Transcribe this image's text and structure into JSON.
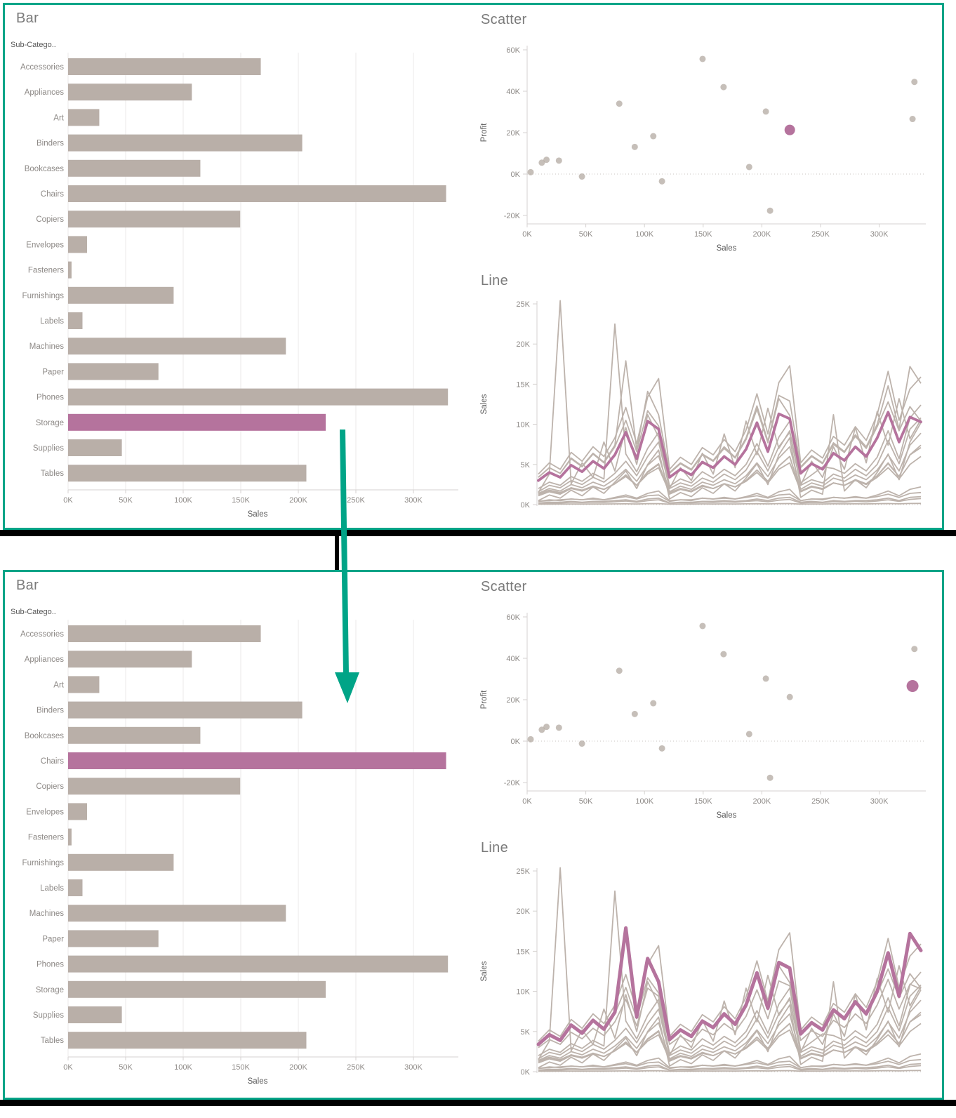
{
  "panels": [
    {
      "position": "top",
      "label": "before-selection",
      "highlight": "Storage"
    },
    {
      "position": "bottom",
      "label": "after-selection",
      "highlight": "Chairs"
    }
  ],
  "colors": {
    "panel_border": "#00a487",
    "arrow": "#00a487",
    "bar_default": "#b9afa8",
    "highlight": "#b5739d",
    "scatter_point": "#b3a9a2",
    "line_default": "#bdb3ac",
    "title_text": "#7a7a7a",
    "tick_text": "#8e8a87",
    "axis_text": "#575757",
    "grid": "#ebe9e8",
    "axis_line": "#d5d2d0",
    "zero_line": "#c8c4c1",
    "window_shadow": "#000000"
  },
  "chart_data": [
    {
      "type": "bar",
      "title": "Bar",
      "orientation": "horizontal",
      "col_header": "Sub-Catego..",
      "xlabel": "Sales",
      "categories": [
        "Accessories",
        "Appliances",
        "Art",
        "Binders",
        "Bookcases",
        "Chairs",
        "Copiers",
        "Envelopes",
        "Fasteners",
        "Furnishings",
        "Labels",
        "Machines",
        "Paper",
        "Phones",
        "Storage",
        "Supplies",
        "Tables"
      ],
      "values_k": [
        167.4,
        107.5,
        27.1,
        203.4,
        114.9,
        328.4,
        149.5,
        16.5,
        3.0,
        91.7,
        12.5,
        189.2,
        78.5,
        330.0,
        223.8,
        46.7,
        207.0
      ],
      "xticks": {
        "values_k": [
          0,
          50,
          100,
          150,
          200,
          250,
          300
        ],
        "labels": [
          "0K",
          "50K",
          "100K",
          "150K",
          "200K",
          "250K",
          "300K"
        ]
      },
      "xlim_k": [
        0,
        340
      ],
      "highlight_by_panel": [
        "Storage",
        "Chairs"
      ]
    },
    {
      "type": "scatter",
      "title": "Scatter",
      "xlabel": "Sales",
      "ylabel": "Profit",
      "categories": [
        "Accessories",
        "Appliances",
        "Art",
        "Binders",
        "Bookcases",
        "Chairs",
        "Copiers",
        "Envelopes",
        "Fasteners",
        "Furnishings",
        "Labels",
        "Machines",
        "Paper",
        "Phones",
        "Storage",
        "Supplies",
        "Tables"
      ],
      "x_sales_k": [
        167.4,
        107.5,
        27.1,
        203.4,
        114.9,
        328.4,
        149.5,
        16.5,
        3.0,
        91.7,
        12.5,
        189.2,
        78.5,
        330.0,
        223.8,
        46.7,
        207.0
      ],
      "y_profit_k": [
        42.0,
        18.3,
        6.5,
        30.2,
        -3.5,
        26.6,
        55.6,
        6.9,
        0.9,
        13.1,
        5.5,
        3.4,
        34.0,
        44.5,
        21.3,
        -1.2,
        -17.7
      ],
      "xticks": {
        "values_k": [
          0,
          50,
          100,
          150,
          200,
          250,
          300
        ],
        "labels": [
          "0K",
          "50K",
          "100K",
          "150K",
          "200K",
          "250K",
          "300K"
        ]
      },
      "yticks": {
        "values_k": [
          60,
          40,
          20,
          0,
          -20
        ],
        "labels": [
          "60K",
          "40K",
          "20K",
          "0K",
          "-20K"
        ]
      },
      "xlim_k": [
        0,
        345
      ],
      "ylim_k": [
        -25,
        63
      ],
      "zero_line": true,
      "highlight_by_panel": [
        "Storage",
        "Chairs"
      ]
    },
    {
      "type": "line",
      "title": "Line",
      "ylabel": "Sales",
      "x_unit": "month",
      "yticks": {
        "values_k": [
          0,
          5,
          10,
          15,
          20,
          25
        ],
        "labels": [
          "0K",
          "5K",
          "10K",
          "15K",
          "20K",
          "25K"
        ]
      },
      "ylim_k": [
        0,
        25.5
      ],
      "zero_line": true,
      "highlight_by_panel": [
        "Storage",
        "Chairs"
      ],
      "series": [
        {
          "name": "Accessories",
          "values_k": [
            1.6,
            2.4,
            2.1,
            3.0,
            2.5,
            3.4,
            2.8,
            3.9,
            5.4,
            3.6,
            6.0,
            7.8,
            2.0,
            2.7,
            2.3,
            3.3,
            2.8,
            3.8,
            3.1,
            4.3,
            6.6,
            4.2,
            7.2,
            9.0,
            2.4,
            3.1,
            2.7,
            3.8,
            3.3,
            4.4,
            3.6,
            5.0,
            8.0,
            5.1,
            9.4,
            10.8
          ]
        },
        {
          "name": "Appliances",
          "values_k": [
            1.1,
            1.6,
            1.3,
            2.0,
            1.7,
            2.2,
            1.9,
            2.6,
            3.6,
            2.4,
            4.0,
            5.0,
            1.3,
            1.9,
            1.6,
            2.3,
            2.0,
            2.6,
            2.2,
            3.0,
            4.3,
            2.9,
            4.8,
            6.0,
            1.6,
            2.2,
            1.9,
            2.7,
            2.4,
            3.1,
            2.6,
            3.6,
            5.1,
            3.5,
            6.2,
            7.4
          ]
        },
        {
          "name": "Art",
          "values_k": [
            0.4,
            0.5,
            0.6,
            0.7,
            0.6,
            0.7,
            0.6,
            0.8,
            1.0,
            0.7,
            1.1,
            1.2,
            0.4,
            0.6,
            0.6,
            0.8,
            0.7,
            0.8,
            0.7,
            0.9,
            1.1,
            0.8,
            1.2,
            1.3,
            0.5,
            0.7,
            0.7,
            0.9,
            0.8,
            0.9,
            0.8,
            1.0,
            1.3,
            0.9,
            1.4,
            1.5
          ]
        },
        {
          "name": "Binders",
          "values_k": [
            2.0,
            2.8,
            2.4,
            3.5,
            2.9,
            3.9,
            3.2,
            22.5,
            6.3,
            4.1,
            7.0,
            9.0,
            2.3,
            3.2,
            2.7,
            4.1,
            3.3,
            4.4,
            3.6,
            5.0,
            7.6,
            4.8,
            8.4,
            10.4,
            2.7,
            3.7,
            4.7,
            4.5,
            3.9,
            5.1,
            4.2,
            5.9,
            9.2,
            5.7,
            10.8,
            12.4
          ]
        },
        {
          "name": "Bookcases",
          "values_k": [
            1.4,
            2.0,
            1.7,
            2.5,
            2.1,
            2.8,
            2.3,
            3.2,
            4.4,
            2.9,
            4.9,
            6.1,
            1.6,
            2.3,
            1.9,
            2.8,
            2.4,
            3.1,
            2.6,
            3.6,
            5.2,
            3.5,
            5.8,
            7.2,
            1.9,
            2.7,
            2.3,
            3.3,
            2.9,
            3.7,
            3.1,
            4.3,
            6.2,
            4.2,
            7.4,
            8.9
          ]
        },
        {
          "name": "Chairs",
          "values_k": [
            3.4,
            4.6,
            3.9,
            5.8,
            4.8,
            6.4,
            5.3,
            7.4,
            17.9,
            6.8,
            14.1,
            11.2,
            4.0,
            5.2,
            4.4,
            6.3,
            5.5,
            7.2,
            5.9,
            8.3,
            12.3,
            7.9,
            13.6,
            12.9,
            4.7,
            6.1,
            5.2,
            7.7,
            6.6,
            8.7,
            7.2,
            10.0,
            14.8,
            9.4,
            17.2,
            15.1
          ]
        },
        {
          "name": "Copiers",
          "values_k": [
            0.5,
            1.2,
            0.8,
            1.8,
            1.1,
            2.2,
            1.4,
            2.8,
            4.2,
            2.0,
            5.0,
            6.8,
            0.7,
            1.5,
            1.0,
            2.1,
            1.4,
            2.6,
            1.7,
            3.3,
            5.1,
            2.5,
            6.2,
            8.3,
            0.9,
            1.8,
            1.3,
            11.2,
            1.7,
            3.1,
            2.1,
            4.0,
            6.3,
            3.1,
            7.8,
            10.2
          ]
        },
        {
          "name": "Envelopes",
          "values_k": [
            0.2,
            0.3,
            0.3,
            0.4,
            0.3,
            0.4,
            0.4,
            0.5,
            0.6,
            0.4,
            0.7,
            0.8,
            0.2,
            0.3,
            0.3,
            0.4,
            0.4,
            0.5,
            0.4,
            0.5,
            0.7,
            0.5,
            0.8,
            0.9,
            0.3,
            0.4,
            0.3,
            0.5,
            0.4,
            0.5,
            0.5,
            0.6,
            0.8,
            0.5,
            0.9,
            1.0
          ]
        },
        {
          "name": "Fasteners",
          "values_k": [
            0.05,
            0.06,
            0.07,
            0.08,
            0.07,
            0.08,
            0.08,
            0.09,
            0.1,
            0.08,
            0.11,
            0.12,
            0.05,
            0.07,
            0.07,
            0.09,
            0.08,
            0.09,
            0.08,
            0.1,
            0.11,
            0.09,
            0.12,
            0.13,
            0.06,
            0.08,
            0.08,
            0.1,
            0.09,
            0.1,
            0.09,
            0.11,
            0.13,
            0.1,
            0.14,
            0.15
          ]
        },
        {
          "name": "Furnishings",
          "values_k": [
            1.2,
            1.7,
            1.4,
            2.1,
            1.7,
            2.3,
            1.9,
            2.6,
            3.7,
            2.4,
            4.1,
            5.1,
            1.4,
            1.9,
            1.6,
            2.3,
            2.0,
            2.6,
            2.2,
            3.0,
            4.3,
            2.9,
            4.8,
            6.0,
            1.6,
            2.2,
            1.9,
            2.7,
            2.4,
            3.1,
            2.6,
            3.6,
            5.2,
            3.5,
            6.2,
            7.1
          ]
        },
        {
          "name": "Labels",
          "values_k": [
            0.15,
            0.2,
            0.2,
            0.3,
            0.25,
            0.3,
            0.27,
            0.35,
            0.45,
            0.3,
            0.5,
            0.6,
            0.18,
            0.25,
            0.22,
            0.32,
            0.28,
            0.35,
            0.3,
            0.4,
            0.5,
            0.35,
            0.55,
            0.65,
            0.2,
            0.28,
            0.25,
            0.36,
            0.31,
            0.4,
            0.34,
            0.45,
            0.6,
            0.4,
            0.65,
            0.75
          ]
        },
        {
          "name": "Machines",
          "values_k": [
            1.5,
            3.8,
            25.4,
            2.6,
            5.2,
            3.4,
            7.8,
            4.2,
            9.6,
            5.0,
            11.2,
            8.4,
            2.0,
            4.6,
            3.0,
            6.4,
            3.8,
            8.8,
            4.6,
            10.4,
            6.2,
            12.0,
            7.0,
            9.2,
            2.4,
            5.4,
            3.4,
            7.2,
            4.4,
            9.6,
            5.2,
            11.6,
            7.4,
            13.2,
            8.2,
            10.6
          ]
        },
        {
          "name": "Paper",
          "values_k": [
            1.3,
            1.8,
            1.5,
            2.1,
            1.8,
            2.3,
            1.9,
            2.6,
            3.5,
            2.4,
            3.8,
            4.6,
            1.5,
            2.0,
            1.7,
            2.4,
            2.0,
            2.6,
            2.2,
            2.9,
            4.0,
            2.7,
            4.4,
            5.2,
            1.7,
            2.3,
            2.0,
            2.7,
            2.4,
            3.0,
            2.5,
            3.4,
            4.6,
            3.2,
            5.0,
            6.0
          ]
        },
        {
          "name": "Phones",
          "values_k": [
            3.8,
            5.2,
            4.4,
            6.5,
            5.4,
            7.2,
            6.0,
            8.3,
            12.1,
            7.6,
            13.4,
            15.7,
            4.4,
            5.9,
            5.0,
            7.1,
            6.2,
            8.1,
            6.6,
            9.3,
            13.8,
            8.8,
            15.2,
            17.3,
            5.2,
            6.8,
            5.8,
            8.5,
            7.4,
            9.7,
            8.0,
            11.2,
            16.6,
            10.5,
            14.4,
            15.9
          ]
        },
        {
          "name": "Storage",
          "values_k": [
            3.0,
            4.0,
            3.4,
            4.9,
            4.1,
            5.4,
            4.5,
            6.2,
            9.0,
            5.7,
            10.4,
            9.4,
            3.4,
            4.4,
            3.7,
            5.3,
            4.6,
            6.0,
            5.0,
            6.9,
            10.2,
            6.6,
            11.3,
            10.7,
            3.9,
            5.1,
            4.4,
            6.4,
            5.5,
            7.2,
            6.0,
            8.3,
            11.5,
            7.8,
            10.9,
            10.3
          ]
        },
        {
          "name": "Supplies",
          "values_k": [
            0.4,
            0.6,
            0.5,
            0.7,
            0.6,
            0.8,
            0.6,
            0.9,
            1.2,
            0.8,
            1.4,
            1.7,
            0.5,
            0.6,
            0.5,
            0.8,
            0.7,
            0.9,
            0.7,
            1.0,
            1.4,
            0.9,
            1.6,
            1.9,
            0.5,
            0.7,
            0.6,
            0.9,
            0.8,
            1.0,
            0.8,
            1.2,
            1.7,
            1.1,
            1.9,
            2.2
          ]
        },
        {
          "name": "Tables",
          "values_k": [
            3.4,
            4.6,
            3.9,
            5.7,
            4.7,
            6.3,
            5.2,
            7.2,
            10.5,
            6.6,
            11.7,
            9.8,
            3.9,
            5.1,
            4.3,
            6.2,
            5.4,
            7.0,
            5.8,
            8.1,
            11.9,
            7.7,
            13.2,
            11.1,
            4.6,
            6.0,
            5.1,
            7.5,
            6.5,
            8.5,
            7.0,
            9.7,
            12.8,
            9.2,
            12.2,
            10.4
          ]
        }
      ]
    }
  ]
}
